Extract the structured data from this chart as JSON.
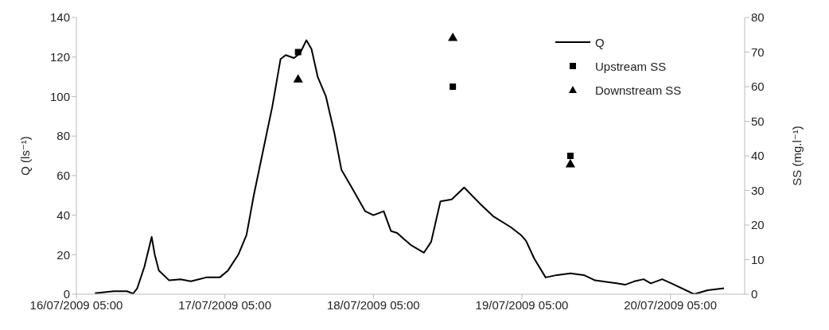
{
  "chart_data": {
    "type": "line",
    "ylabel": "Q (ls⁻¹)",
    "y2label": "SS (mg.l⁻¹)",
    "xlim": [
      "2009-07-16T05:00",
      "2009-07-20T17:00"
    ],
    "xticks": [
      {
        "value": "2009-07-16T05:00",
        "label": "16/07/2009 05:00"
      },
      {
        "value": "2009-07-17T05:00",
        "label": "17/07/2009 05:00"
      },
      {
        "value": "2009-07-18T05:00",
        "label": "18/07/2009 05:00"
      },
      {
        "value": "2009-07-19T05:00",
        "label": "19/07/2009 05:00"
      },
      {
        "value": "2009-07-20T05:00",
        "label": "20/07/2009 05:00"
      }
    ],
    "ylim": [
      0,
      140
    ],
    "yticks": [
      0,
      20,
      40,
      60,
      80,
      100,
      120,
      140
    ],
    "y2lim": [
      0,
      80
    ],
    "y2ticks": [
      0,
      10,
      20,
      30,
      40,
      50,
      60,
      70,
      80
    ],
    "grid": false,
    "legend": "top right",
    "series": [
      {
        "name": "Q",
        "color": "#000000",
        "marker": "none",
        "x": [
          "2009-07-16T08:00",
          "2009-07-16T11:00",
          "2009-07-16T13:10",
          "2009-07-16T14:10",
          "2009-07-16T14:50",
          "2009-07-16T16:00",
          "2009-07-16T17:10",
          "2009-07-16T17:40",
          "2009-07-16T18:20",
          "2009-07-16T20:00",
          "2009-07-16T21:50",
          "2009-07-16T23:30",
          "2009-07-17T02:00",
          "2009-07-17T04:10",
          "2009-07-17T05:30",
          "2009-07-17T07:10",
          "2009-07-17T08:30",
          "2009-07-17T09:40",
          "2009-07-17T11:20",
          "2009-07-17T12:40",
          "2009-07-17T14:00",
          "2009-07-17T14:50",
          "2009-07-17T16:10",
          "2009-07-17T17:10",
          "2009-07-17T18:10",
          "2009-07-17T19:00",
          "2009-07-17T20:00",
          "2009-07-17T21:20",
          "2009-07-17T22:40",
          "2009-07-17T23:50",
          "2009-07-18T01:30",
          "2009-07-18T03:40",
          "2009-07-18T05:00",
          "2009-07-18T06:40",
          "2009-07-18T07:50",
          "2009-07-18T08:50",
          "2009-07-18T11:00",
          "2009-07-18T13:10",
          "2009-07-18T14:20",
          "2009-07-18T15:50",
          "2009-07-18T17:40",
          "2009-07-18T19:40",
          "2009-07-18T22:10",
          "2009-07-19T00:20",
          "2009-07-19T03:10",
          "2009-07-19T04:50",
          "2009-07-19T05:40",
          "2009-07-19T07:00",
          "2009-07-19T08:50",
          "2009-07-19T10:40",
          "2009-07-19T12:50",
          "2009-07-19T15:00",
          "2009-07-19T16:50",
          "2009-07-19T20:20",
          "2009-07-19T21:40",
          "2009-07-19T23:10",
          "2009-07-20T00:40",
          "2009-07-20T01:50",
          "2009-07-20T03:40",
          "2009-07-20T05:10",
          "2009-07-20T08:50",
          "2009-07-20T11:00",
          "2009-07-20T13:40"
        ],
        "values": [
          0.5,
          1.5,
          1.5,
          0.3,
          3,
          14,
          29,
          20,
          12,
          7,
          7.5,
          6.5,
          8.5,
          8.5,
          12,
          20,
          30,
          50,
          75,
          95,
          119,
          121,
          119.5,
          122,
          128.5,
          124,
          110,
          100,
          82,
          63,
          54,
          42,
          40,
          42,
          32,
          31,
          25,
          21,
          26.5,
          47,
          48,
          54,
          46,
          39.5,
          34,
          30,
          27,
          18,
          8.5,
          9.7,
          10.6,
          9.7,
          7,
          5.5,
          4.8,
          6.5,
          7.6,
          5.5,
          7.6,
          5.5,
          0,
          2,
          3
        ]
      },
      {
        "name": "Upstream SS",
        "type": "scatter",
        "axis": "y2",
        "color": "#000000",
        "marker": "square",
        "x": [
          "2009-07-17T16:50",
          "2009-07-18T17:50",
          "2009-07-19T12:50"
        ],
        "values": [
          70,
          60,
          40
        ]
      },
      {
        "name": "Downstream SS",
        "type": "scatter",
        "axis": "y2",
        "color": "#000000",
        "marker": "triangle",
        "x": [
          "2009-07-17T16:50",
          "2009-07-18T17:50",
          "2009-07-19T12:50"
        ],
        "values": [
          62,
          74,
          37.5
        ]
      }
    ]
  }
}
